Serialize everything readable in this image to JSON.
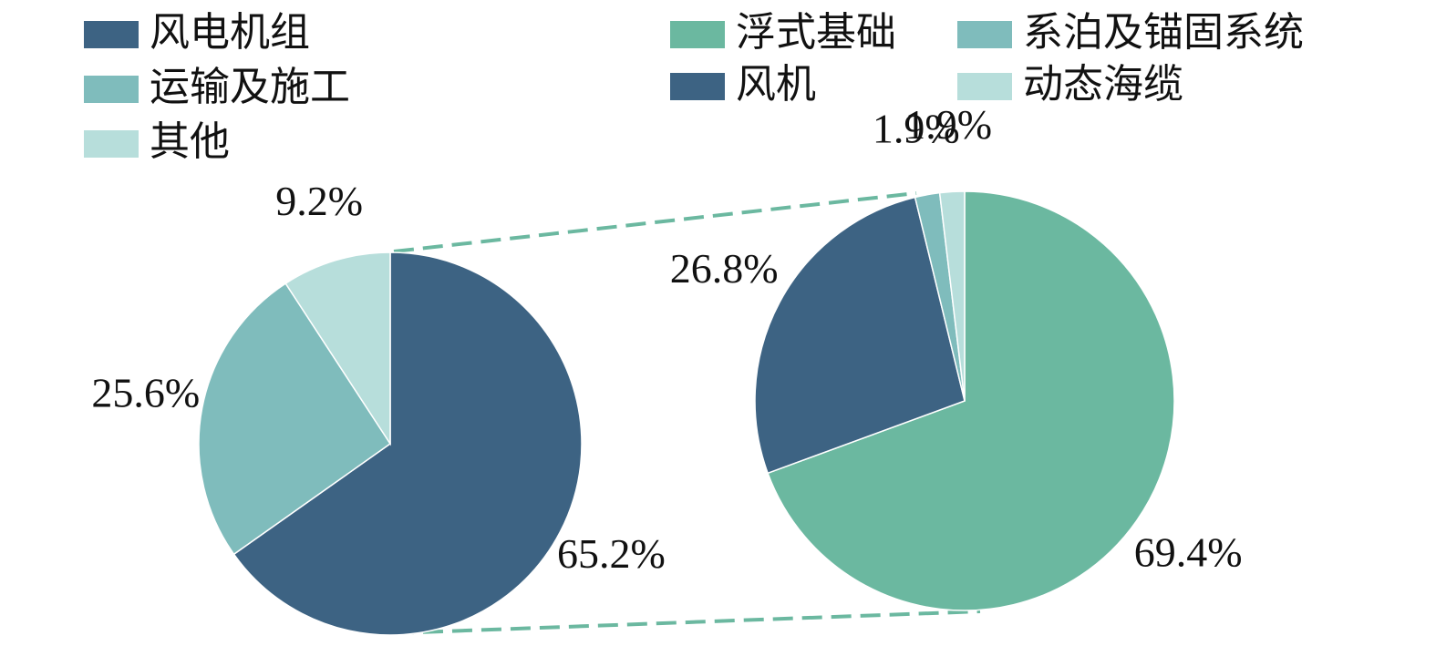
{
  "chart_data": [
    {
      "type": "pie",
      "categories": [
        "风电机组",
        "运输及施工",
        "其他"
      ],
      "values": [
        65.2,
        25.6,
        9.2
      ],
      "value_labels": [
        "65.2%",
        "25.6%",
        "9.2%"
      ],
      "colors": [
        "#3d6383",
        "#7fbcbc",
        "#b7dedb"
      ]
    },
    {
      "type": "pie",
      "categories": [
        "浮式基础",
        "风机",
        "系泊及锚固系统",
        "动态海缆"
      ],
      "values": [
        69.4,
        26.8,
        1.9,
        1.9
      ],
      "value_labels": [
        "69.4%",
        "26.8%",
        "1.9%",
        "1.9%"
      ],
      "colors": [
        "#6bb8a0",
        "#3d6383",
        "#7fbcbc",
        "#b7dedb"
      ]
    }
  ]
}
